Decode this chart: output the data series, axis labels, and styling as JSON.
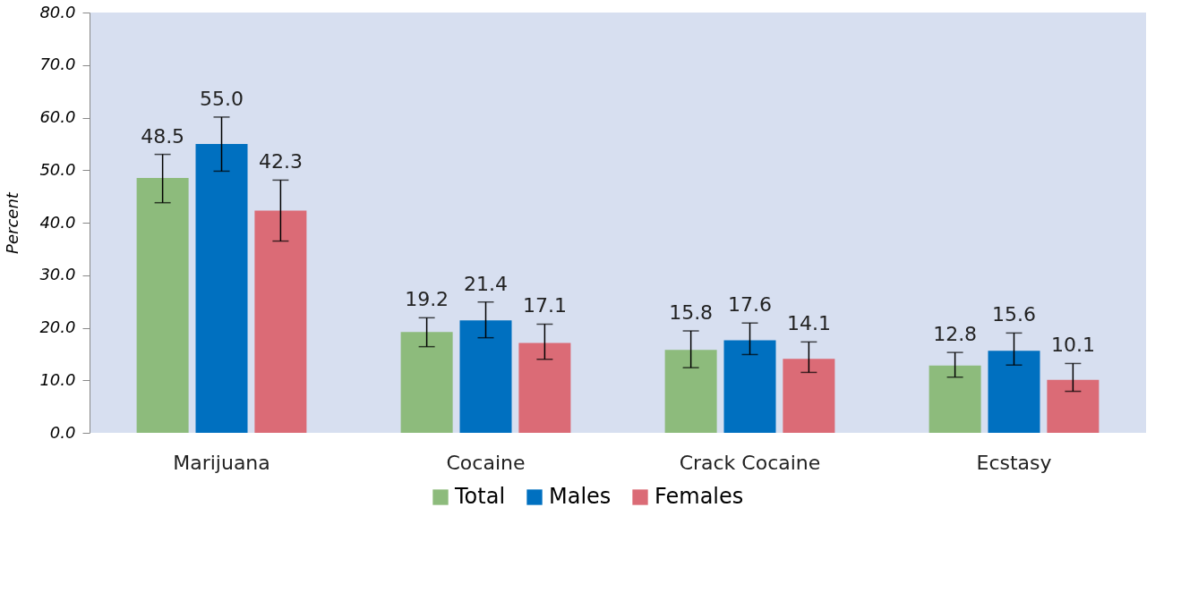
{
  "chart_data": {
    "type": "bar",
    "ylabel": "Percent",
    "categories": [
      "Marijuana",
      "Cocaine",
      "Crack Cocaine",
      "Ecstasy"
    ],
    "series": [
      {
        "name": "Total",
        "color": "#8dbb7c",
        "values": [
          48.5,
          19.2,
          15.8,
          12.8
        ],
        "value_labels": [
          "48.5",
          "19.2",
          "15.8",
          "12.8"
        ],
        "errors": [
          [
            43.8,
            53.0
          ],
          [
            16.4,
            21.9
          ],
          [
            12.4,
            19.4
          ],
          [
            10.6,
            15.3
          ]
        ]
      },
      {
        "name": "Males",
        "color": "#0070c0",
        "values": [
          55.0,
          21.4,
          17.6,
          15.6
        ],
        "value_labels": [
          "55.0",
          "21.4",
          "17.6",
          "15.6"
        ],
        "errors": [
          [
            49.8,
            60.1
          ],
          [
            18.1,
            24.9
          ],
          [
            14.9,
            20.9
          ],
          [
            12.9,
            19.0
          ]
        ]
      },
      {
        "name": "Females",
        "color": "#db6b76",
        "values": [
          42.3,
          17.1,
          14.1,
          10.1
        ],
        "value_labels": [
          "42.3",
          "17.1",
          "14.1",
          "10.1"
        ],
        "errors": [
          [
            36.5,
            48.1
          ],
          [
            14.0,
            20.7
          ],
          [
            11.5,
            17.3
          ],
          [
            7.9,
            13.2
          ]
        ]
      }
    ],
    "ylim": [
      0,
      80
    ],
    "yticks": [
      {
        "value": 0,
        "label": "0.0"
      },
      {
        "value": 10,
        "label": "10.0"
      },
      {
        "value": 20,
        "label": "20.0"
      },
      {
        "value": 30,
        "label": "30.0"
      },
      {
        "value": 40,
        "label": "40.0"
      },
      {
        "value": 50,
        "label": "50.0"
      },
      {
        "value": 60,
        "label": "60.0"
      },
      {
        "value": 70,
        "label": "70.0"
      },
      {
        "value": 80,
        "label": "80.0"
      }
    ],
    "grid": false,
    "legend": "bottom"
  }
}
